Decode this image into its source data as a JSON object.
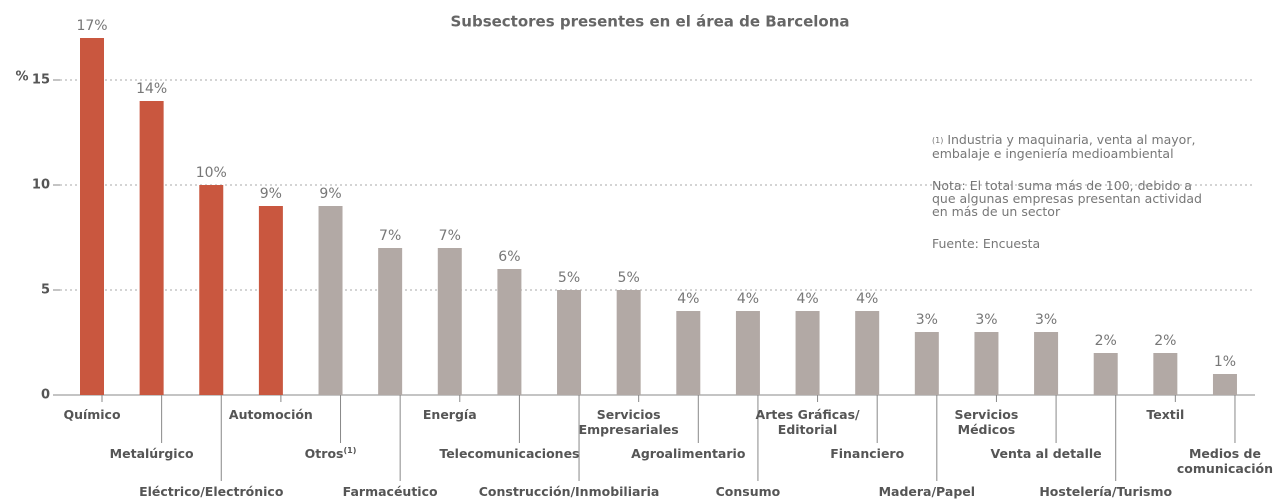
{
  "chart_data": {
    "type": "bar",
    "title": "Subsectores presentes en el área de Barcelona",
    "y_label": "%",
    "categories": [
      "Químico",
      "Metalúrgico",
      "Eléctrico/Electrónico",
      "Automoción",
      "Otros",
      "Farmacéutico",
      "Energía",
      "Telecomunicaciones",
      "Construcción/Inmobiliaria",
      "Servicios\nEmpresariales",
      "Agroalimentario",
      "Consumo",
      "Artes  Gráficas/\nEditorial",
      "Financiero",
      "Madera/Papel",
      "Servicios\nMédicos",
      "Venta al detalle",
      "Hostelería/Turismo",
      "Textil",
      "Medios de\ncomunicación"
    ],
    "footnote_mark": "(1)",
    "values": [
      17,
      14,
      10,
      9,
      9,
      7,
      7,
      6,
      5,
      5,
      4,
      4,
      4,
      4,
      3,
      3,
      3,
      2,
      2,
      1
    ],
    "value_labels": [
      "17%",
      "14%",
      "10%",
      "9%",
      "9%",
      "7%",
      "7%",
      "6%",
      "5%",
      "5%",
      "4%",
      "4%",
      "4%",
      "4%",
      "3%",
      "3%",
      "3%",
      "2%",
      "2%",
      "1%"
    ],
    "colors": [
      "#c9573f",
      "#c9573f",
      "#c9573f",
      "#c9573f",
      "#b2a9a5",
      "#b2a9a5",
      "#b2a9a5",
      "#b2a9a5",
      "#b2a9a5",
      "#b2a9a5",
      "#b2a9a5",
      "#b2a9a5",
      "#b2a9a5",
      "#b2a9a5",
      "#b2a9a5",
      "#b2a9a5",
      "#b2a9a5",
      "#b2a9a5",
      "#b2a9a5",
      "#b2a9a5"
    ],
    "ylim": [
      0,
      17.5
    ],
    "yticks": [
      0,
      5,
      10,
      15
    ],
    "grid": true,
    "notes": [
      "Industria y maquinaria, venta al mayor,\nembalaje e ingeniería medioambiental",
      "Nota: El total suma más de 100, debido a\nque algunas empresas presentan actividad\nen más de un sector",
      "Fuente: Encuesta"
    ]
  }
}
